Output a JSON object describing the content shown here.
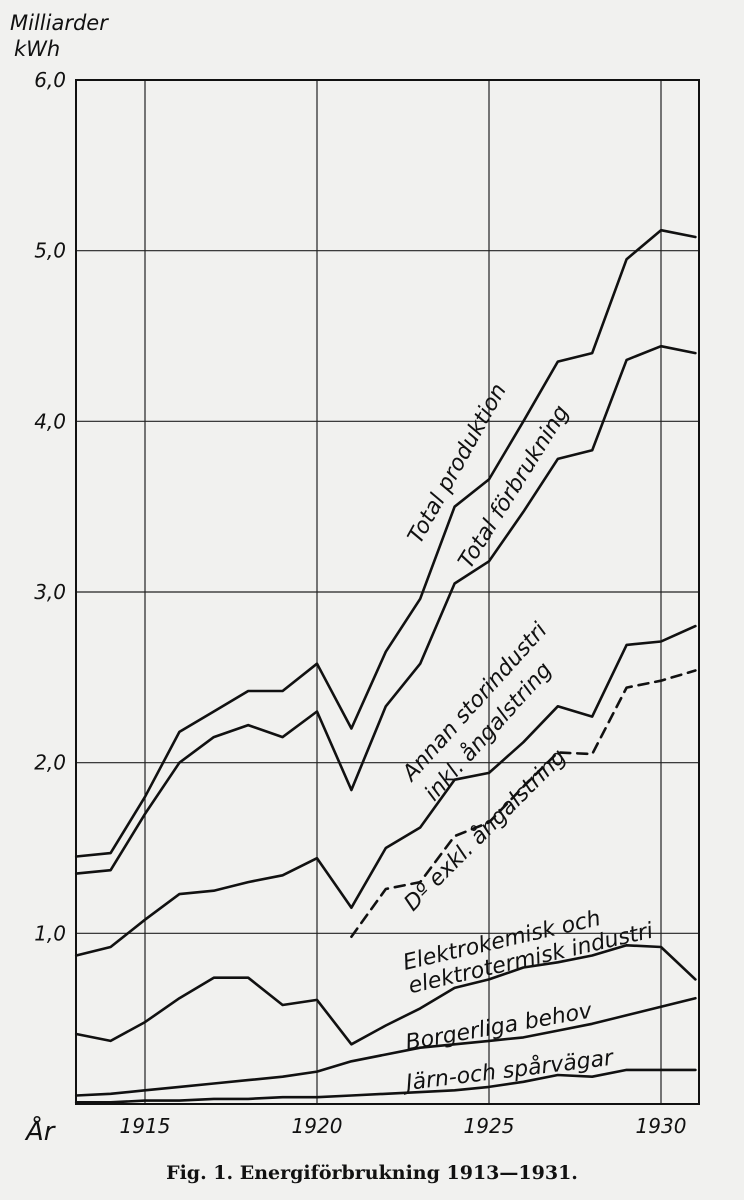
{
  "chart_data": {
    "type": "line",
    "caption": "Fig. 1.   Energiförbrukning 1913—1931.",
    "ylabel_line1": "Milliarder",
    "ylabel_line2": "kWh",
    "xlabel": "År",
    "ylim": [
      0,
      6.0
    ],
    "xlim": [
      1913,
      1931
    ],
    "grid": true,
    "ytick_values": [
      0,
      1,
      2,
      3,
      4,
      5,
      6
    ],
    "ytick_labels": [
      "",
      "1,0",
      "2,0",
      "3,0",
      "4,0",
      "5,0",
      "6,0"
    ],
    "xtick_values": [
      1915,
      1920,
      1925,
      1930
    ],
    "xtick_labels": [
      "1915",
      "1920",
      "1925",
      "1930"
    ],
    "x": [
      1913,
      1914,
      1915,
      1916,
      1917,
      1918,
      1919,
      1920,
      1921,
      1922,
      1923,
      1924,
      1925,
      1926,
      1927,
      1928,
      1929,
      1930,
      1931
    ],
    "series": [
      {
        "name": "Total produktion",
        "dashed": false,
        "values": [
          1.45,
          1.47,
          1.8,
          2.18,
          2.3,
          2.42,
          2.42,
          2.58,
          2.2,
          2.65,
          2.96,
          3.5,
          3.66,
          4.0,
          4.35,
          4.4,
          4.95,
          5.12,
          5.08
        ]
      },
      {
        "name": "Total förbrukning",
        "dashed": false,
        "values": [
          1.35,
          1.37,
          1.7,
          2.0,
          2.15,
          2.22,
          2.15,
          2.3,
          1.84,
          2.33,
          2.58,
          3.05,
          3.18,
          3.47,
          3.78,
          3.83,
          4.36,
          4.44,
          4.4
        ]
      },
      {
        "name": "Annan storindustri inkl. ångalstring",
        "dashed": false,
        "values": [
          0.87,
          0.92,
          1.08,
          1.23,
          1.25,
          1.3,
          1.34,
          1.44,
          1.15,
          1.5,
          1.62,
          1.9,
          1.94,
          2.12,
          2.33,
          2.27,
          2.69,
          2.71,
          2.8
        ]
      },
      {
        "name": "Dº exkl. ångalstring",
        "dashed": true,
        "x_start": 1921,
        "values": [
          null,
          null,
          null,
          null,
          null,
          null,
          null,
          null,
          0.98,
          1.26,
          1.3,
          1.57,
          1.65,
          1.86,
          2.06,
          2.05,
          2.44,
          2.48,
          2.54
        ]
      },
      {
        "name": "Elektrokemisk och elektrotermisk industri",
        "dashed": false,
        "values": [
          0.41,
          0.37,
          0.48,
          0.62,
          0.74,
          0.74,
          0.58,
          0.61,
          0.35,
          0.46,
          0.56,
          0.68,
          0.73,
          0.8,
          0.83,
          0.87,
          0.93,
          0.92,
          0.73
        ]
      },
      {
        "name": "Borgerliga behov",
        "dashed": false,
        "values": [
          0.05,
          0.06,
          0.08,
          0.1,
          0.12,
          0.14,
          0.16,
          0.19,
          0.25,
          0.29,
          0.33,
          0.35,
          0.37,
          0.39,
          0.43,
          0.47,
          0.52,
          0.57,
          0.62
        ]
      },
      {
        "name": "Järn- och spårvägar",
        "dashed": false,
        "values": [
          0.01,
          0.01,
          0.02,
          0.02,
          0.03,
          0.03,
          0.04,
          0.04,
          0.05,
          0.06,
          0.07,
          0.08,
          0.1,
          0.13,
          0.17,
          0.16,
          0.2,
          0.2,
          0.2
        ]
      }
    ],
    "line_labels": [
      {
        "lines": [
          "Total produktion"
        ]
      },
      {
        "lines": [
          "Total förbrukning"
        ]
      },
      {
        "lines": [
          "Annan storindustri",
          "inkl. ångalstring"
        ]
      },
      {
        "lines": [
          "Dº  exkl. ångalstring"
        ]
      },
      {
        "lines": [
          "Elektrokemisk och",
          "elektrotermisk industri"
        ]
      },
      {
        "lines": [
          "Borgerliga behov"
        ]
      },
      {
        "lines": [
          "Järn-och spårvägar"
        ]
      }
    ]
  }
}
